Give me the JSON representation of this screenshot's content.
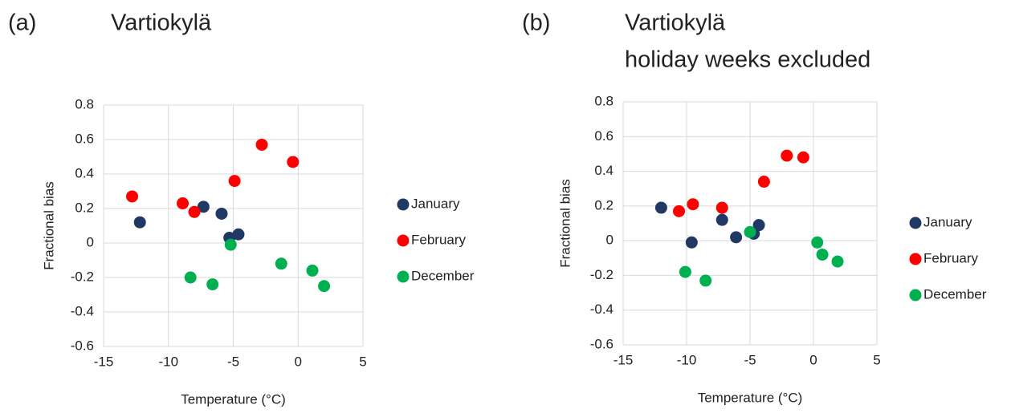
{
  "chart_data": [
    {
      "type": "scatter",
      "panel": "(a)",
      "title": "Vartiokylä",
      "x_label": "Temperature (°C)",
      "y_label": "Fractional bias",
      "xlim": [
        -15,
        5
      ],
      "xticks": [
        -15,
        -10,
        -5,
        0,
        5
      ],
      "ylim": [
        -0.6,
        0.8
      ],
      "yticks": [
        -0.6,
        -0.4,
        -0.2,
        0,
        0.2,
        0.4,
        0.6,
        0.8
      ],
      "grid": true,
      "legend": "right",
      "series": [
        {
          "name": "January",
          "color": "#203864",
          "x": [
            -12.2,
            -7.3,
            -5.9,
            -5.3,
            -4.6
          ],
          "values": [
            0.12,
            0.21,
            0.17,
            0.03,
            0.05
          ]
        },
        {
          "name": "February",
          "color": "#ff0000",
          "x": [
            -12.8,
            -8.9,
            -8.0,
            -4.9,
            -2.8,
            -0.4
          ],
          "values": [
            0.27,
            0.23,
            0.18,
            0.36,
            0.57,
            0.47
          ]
        },
        {
          "name": "December",
          "color": "#00b050",
          "x": [
            -8.3,
            -6.6,
            -5.2,
            -1.3,
            1.1,
            2.0
          ],
          "values": [
            -0.2,
            -0.24,
            -0.01,
            -0.12,
            -0.16,
            -0.25
          ]
        }
      ]
    },
    {
      "type": "scatter",
      "panel": "(b)",
      "title": "Vartiokylä",
      "subtitle": "holiday weeks excluded",
      "x_label": "Temperature (°C)",
      "y_label": "Fractional bias",
      "xlim": [
        -15,
        5
      ],
      "xticks": [
        -15,
        -10,
        -5,
        0,
        5
      ],
      "ylim": [
        -0.6,
        0.8
      ],
      "yticks": [
        -0.6,
        -0.4,
        -0.2,
        0,
        0.2,
        0.4,
        0.6,
        0.8
      ],
      "grid": true,
      "legend": "right",
      "series": [
        {
          "name": "January",
          "color": "#203864",
          "x": [
            -12.0,
            -9.6,
            -7.2,
            -6.1,
            -4.7,
            -4.3
          ],
          "values": [
            0.19,
            -0.01,
            0.12,
            0.02,
            0.04,
            0.09
          ]
        },
        {
          "name": "February",
          "color": "#ff0000",
          "x": [
            -10.6,
            -9.5,
            -7.2,
            -3.9,
            -2.1,
            -0.8
          ],
          "values": [
            0.17,
            0.21,
            0.19,
            0.34,
            0.49,
            0.48
          ]
        },
        {
          "name": "December",
          "color": "#00b050",
          "x": [
            -10.1,
            -8.5,
            -5.0,
            0.3,
            0.7,
            1.9
          ],
          "values": [
            -0.18,
            -0.23,
            0.05,
            -0.01,
            -0.08,
            -0.12
          ]
        }
      ]
    }
  ]
}
